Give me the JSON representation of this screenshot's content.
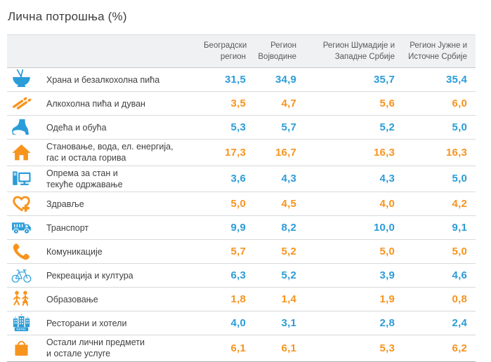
{
  "title": "Лична потрошња (%)",
  "colors": {
    "blue": "#2b9cd8",
    "orange": "#f7941e",
    "header_bg": "#f0f1f3",
    "label_text": "#404041",
    "header_text": "#58595b"
  },
  "table": {
    "columns": [
      "Београдски\nрегион",
      "Регион\nВојводине",
      "Регион Шумадије и\nЗападне Србије",
      "Регион Јужне и\nИсточне Србије"
    ],
    "rows": [
      {
        "icon": "food-bowl-icon",
        "color": "blue",
        "label": "Храна и безалкохолна пића",
        "values": [
          "31,5",
          "34,9",
          "35,7",
          "35,4"
        ]
      },
      {
        "icon": "cigarettes-icon",
        "color": "orange",
        "label": "Алкохолна пића и дуван",
        "values": [
          "3,5",
          "4,7",
          "5,6",
          "6,0"
        ]
      },
      {
        "icon": "shoe-icon",
        "color": "blue",
        "label": "Одећа и обућа",
        "values": [
          "5,3",
          "5,7",
          "5,2",
          "5,0"
        ]
      },
      {
        "icon": "house-icon",
        "color": "orange",
        "label": "Становање, вода, ел. енергија,\nгас и остала горива",
        "values": [
          "17,3",
          "16,7",
          "16,3",
          "16,3"
        ]
      },
      {
        "icon": "computer-icon",
        "color": "blue",
        "label": "Опрема за стан и\nтекуће одржавање",
        "values": [
          "3,6",
          "4,3",
          "4,3",
          "5,0"
        ]
      },
      {
        "icon": "health-icon",
        "color": "orange",
        "label": "Здравље",
        "values": [
          "5,0",
          "4,5",
          "4,0",
          "4,2"
        ]
      },
      {
        "icon": "truck-icon",
        "color": "blue",
        "label": "Транспорт",
        "values": [
          "9,9",
          "8,2",
          "10,0",
          "9,1"
        ]
      },
      {
        "icon": "phone-icon",
        "color": "orange",
        "label": "Комуникације",
        "values": [
          "5,7",
          "5,2",
          "5,0",
          "5,0"
        ]
      },
      {
        "icon": "bicycle-icon",
        "color": "blue",
        "label": "Рекреација и култура",
        "values": [
          "6,3",
          "5,2",
          "3,9",
          "4,6"
        ]
      },
      {
        "icon": "pedestrians-icon",
        "color": "orange",
        "label": "Образовање",
        "values": [
          "1,8",
          "1,4",
          "1,9",
          "0,8"
        ]
      },
      {
        "icon": "hotel-icon",
        "color": "blue",
        "label": "Ресторани и хотели",
        "values": [
          "4,0",
          "3,1",
          "2,8",
          "2,4"
        ]
      },
      {
        "icon": "shopping-bag-icon",
        "color": "orange",
        "label": "Остали лични предмети\nи остале услуге",
        "values": [
          "6,1",
          "6,1",
          "5,3",
          "6,2"
        ]
      }
    ]
  },
  "chart_data": {
    "type": "table",
    "title": "Лична потрошња (%)",
    "categories": [
      "Храна и безалкохолна пића",
      "Алкохолна пића и дуван",
      "Одећа и обућа",
      "Становање, вода, ел. енергија, гас и остала горива",
      "Опрема за стан и текуће одржавање",
      "Здравље",
      "Транспорт",
      "Комуникације",
      "Рекреација и култура",
      "Образовање",
      "Ресторани и хотели",
      "Остали лични предмети и остале услуге"
    ],
    "series": [
      {
        "name": "Београдски регион",
        "values": [
          31.5,
          3.5,
          5.3,
          17.3,
          3.6,
          5.0,
          9.9,
          5.7,
          6.3,
          1.8,
          4.0,
          6.1
        ]
      },
      {
        "name": "Регион Војводине",
        "values": [
          34.9,
          4.7,
          5.7,
          16.7,
          4.3,
          4.5,
          8.2,
          5.2,
          5.2,
          1.4,
          3.1,
          6.1
        ]
      },
      {
        "name": "Регион Шумадије и Западне Србије",
        "values": [
          35.7,
          5.6,
          5.2,
          16.3,
          4.3,
          4.0,
          10.0,
          5.0,
          3.9,
          1.9,
          2.8,
          5.3
        ]
      },
      {
        "name": "Регион Јужне и Источне Србије",
        "values": [
          35.4,
          6.0,
          5.0,
          16.3,
          5.0,
          4.2,
          9.1,
          5.0,
          4.6,
          0.8,
          2.4,
          6.2
        ]
      }
    ]
  }
}
